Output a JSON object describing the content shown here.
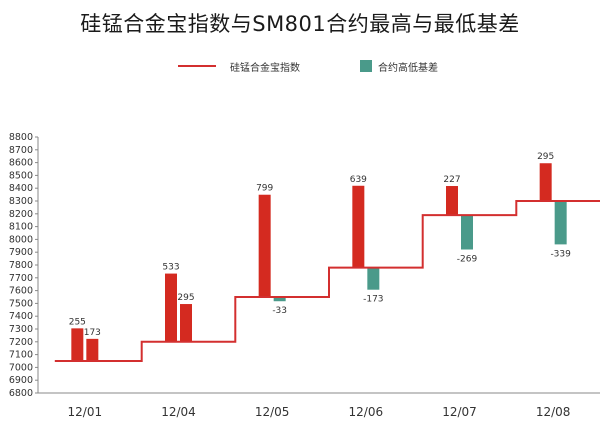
{
  "title": "硅锰合金宝指数与SM801合约最高与最低基差",
  "legend": {
    "index_label": "硅锰合金宝指数",
    "basis_label": "合约高低基差"
  },
  "colors": {
    "index_line": "#d32f2f",
    "positive_bar": "#d42a20",
    "negative_bar": "#4a9a8a",
    "axis": "#888888",
    "text": "#333333"
  },
  "chart_data": {
    "type": "bar",
    "categories": [
      "12/01",
      "12/04",
      "12/05",
      "12/06",
      "12/07",
      "12/08"
    ],
    "index_values": [
      7050,
      7200,
      7550,
      7780,
      8190,
      8300
    ],
    "series": [
      {
        "name": "",
        "values": [
          255,
          533,
          799,
          639,
          227,
          295
        ]
      },
      {
        "name": "",
        "values": [
          173,
          295,
          -33,
          -173,
          -269,
          -339
        ]
      }
    ],
    "ylim": [
      6800,
      8800
    ],
    "yticks": [
      6800,
      6900,
      7000,
      7100,
      7200,
      7300,
      7400,
      7500,
      7600,
      7700,
      7800,
      7900,
      8000,
      8100,
      8200,
      8300,
      8400,
      8500,
      8600,
      8700,
      8800
    ],
    "xlabel": "",
    "ylabel": ""
  }
}
